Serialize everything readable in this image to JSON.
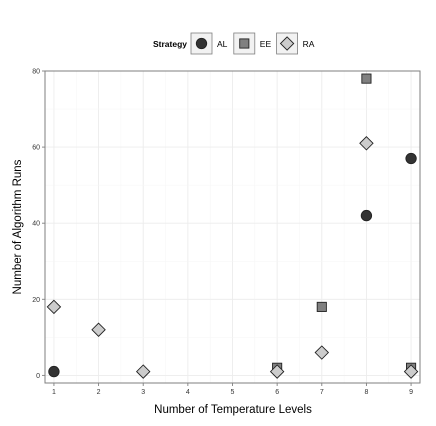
{
  "chart_data": {
    "type": "scatter",
    "title": "",
    "xlabel": "Number of Temperature Levels",
    "ylabel": "Number of Algorithm Runs",
    "xlim": [
      0.8,
      9.2
    ],
    "ylim": [
      -2,
      80
    ],
    "x_ticks": [
      1,
      2,
      3,
      4,
      5,
      6,
      7,
      8,
      9
    ],
    "y_ticks": [
      0,
      20,
      40,
      60,
      80
    ],
    "grid": true,
    "legend": {
      "title": "Strategy",
      "placement": "top-center"
    },
    "series": [
      {
        "name": "AL",
        "marker": "circle",
        "color": "#333333",
        "points": [
          [
            1,
            1
          ],
          [
            8,
            42
          ],
          [
            9,
            57
          ]
        ]
      },
      {
        "name": "EE",
        "marker": "square",
        "color": "#808080",
        "points": [
          [
            6,
            2
          ],
          [
            7,
            18
          ],
          [
            8,
            78
          ],
          [
            9,
            2
          ]
        ]
      },
      {
        "name": "RA",
        "marker": "diamond",
        "color": "#cccccc",
        "points": [
          [
            1,
            18
          ],
          [
            2,
            12
          ],
          [
            3,
            1
          ],
          [
            6,
            1
          ],
          [
            7,
            6
          ],
          [
            8,
            61
          ],
          [
            9,
            1
          ]
        ]
      }
    ]
  }
}
